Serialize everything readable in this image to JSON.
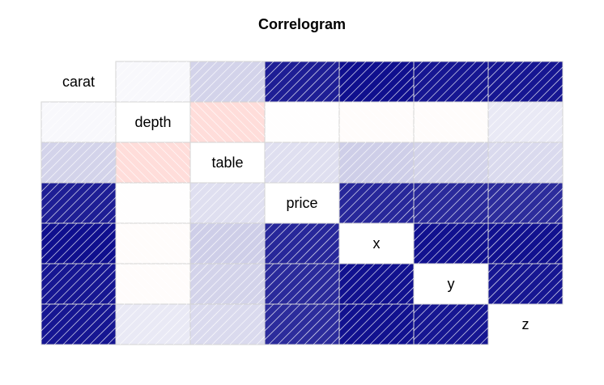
{
  "chart_data": {
    "type": "heatmap",
    "title": "Correlogram",
    "variables": [
      "carat",
      "depth",
      "table",
      "price",
      "x",
      "y",
      "z"
    ],
    "matrix": [
      [
        1.0,
        0.03,
        0.18,
        0.92,
        0.98,
        0.95,
        0.95
      ],
      [
        0.03,
        1.0,
        -0.3,
        -0.01,
        -0.03,
        -0.03,
        0.09
      ],
      [
        0.18,
        -0.3,
        1.0,
        0.13,
        0.2,
        0.18,
        0.15
      ],
      [
        0.92,
        -0.01,
        0.13,
        1.0,
        0.88,
        0.87,
        0.86
      ],
      [
        0.98,
        -0.03,
        0.2,
        0.88,
        1.0,
        0.97,
        0.97
      ],
      [
        0.95,
        -0.03,
        0.18,
        0.87,
        0.97,
        1.0,
        0.95
      ],
      [
        0.95,
        0.09,
        0.15,
        0.86,
        0.97,
        0.95,
        1.0
      ]
    ],
    "colors": {
      "negative": "#ff8c82",
      "positive": "#0a0a8c",
      "neutral": "#ffffff"
    },
    "positive_hatch": "forward-slash lines",
    "negative_hatch": "backslash lines"
  }
}
